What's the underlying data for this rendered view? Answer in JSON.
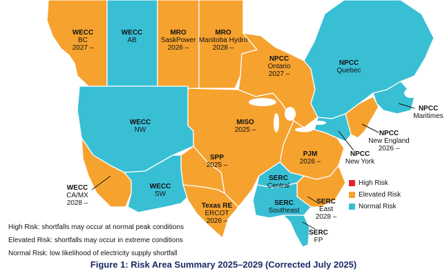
{
  "colors": {
    "high": "#e8222d",
    "elevated": "#f6a22f",
    "normal": "#39bfd4",
    "border": "#ffffff",
    "caption": "#1a2a66"
  },
  "regions": [
    {
      "id": "wecc-bc",
      "name": "WECC",
      "sub": "BC",
      "years": "2027 –",
      "risk": "elevated"
    },
    {
      "id": "wecc-ab",
      "name": "WECC",
      "sub": "AB",
      "years": "",
      "risk": "normal"
    },
    {
      "id": "mro-sask",
      "name": "MRO",
      "sub": "SaskPower",
      "years": "2026 –",
      "risk": "elevated"
    },
    {
      "id": "mro-manitoba",
      "name": "MRO",
      "sub": "Manitoba Hydro",
      "years": "2028 –",
      "risk": "elevated"
    },
    {
      "id": "npcc-ontario",
      "name": "NPCC",
      "sub": "Ontario",
      "years": "2027 –",
      "risk": "elevated"
    },
    {
      "id": "npcc-quebec",
      "name": "NPCC",
      "sub": "Quebec",
      "years": "",
      "risk": "normal"
    },
    {
      "id": "npcc-maritimes",
      "name": "NPCC",
      "sub": "Maritimes",
      "years": "",
      "risk": "normal"
    },
    {
      "id": "wecc-nw",
      "name": "WECC",
      "sub": "NW",
      "years": "",
      "risk": "normal"
    },
    {
      "id": "miso",
      "name": "MISO",
      "sub": "",
      "years": "2025 –",
      "risk": "elevated"
    },
    {
      "id": "npcc-newengland",
      "name": "NPCC",
      "sub": "New England",
      "years": "2026 –",
      "risk": "elevated"
    },
    {
      "id": "npcc-newyork",
      "name": "NPCC",
      "sub": "New York",
      "years": "",
      "risk": "normal"
    },
    {
      "id": "pjm",
      "name": "PJM",
      "sub": "",
      "years": "2026 –",
      "risk": "elevated"
    },
    {
      "id": "spp",
      "name": "SPP",
      "sub": "",
      "years": "2025 –",
      "risk": "elevated"
    },
    {
      "id": "wecc-camx",
      "name": "WECC",
      "sub": "CA/MX",
      "years": "2028 –",
      "risk": "elevated"
    },
    {
      "id": "wecc-sw",
      "name": "WECC",
      "sub": "SW",
      "years": "",
      "risk": "normal"
    },
    {
      "id": "serc-central",
      "name": "SERC",
      "sub": "Central",
      "years": "",
      "risk": "normal"
    },
    {
      "id": "serc-southeast",
      "name": "SERC",
      "sub": "Southeast",
      "years": "",
      "risk": "normal"
    },
    {
      "id": "serc-east",
      "name": "SERC",
      "sub": "East",
      "years": "2028 –",
      "risk": "elevated"
    },
    {
      "id": "texas-re",
      "name": "Texas RE",
      "sub": "ERCOT",
      "years": "2026 –",
      "risk": "elevated"
    },
    {
      "id": "serc-fp",
      "name": "SERC",
      "sub": "FP",
      "years": "",
      "risk": "normal"
    }
  ],
  "legend": {
    "high": "High Risk",
    "elevated": "Elevated Risk",
    "normal": "Normal Risk"
  },
  "notes": {
    "high": "High Risk: shortfalls may occur at normal peak conditions",
    "elevated": "Elevated Risk: shortfalls may occur in extreme conditions",
    "normal": "Normal Risk: low likelihood of electricity supply shortfall"
  },
  "caption": "Figure 1: Risk Area Summary 2025–2029 (Corrected July 2025)"
}
